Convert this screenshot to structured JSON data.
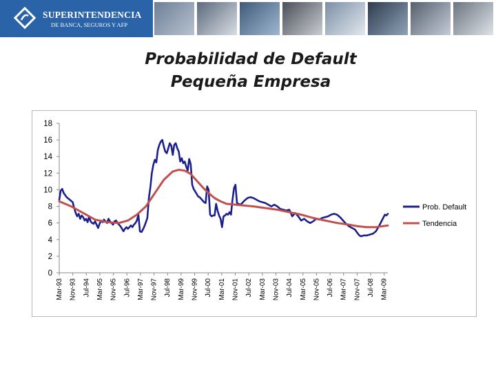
{
  "header": {
    "logo_name": "SUPERINTENDENCIA",
    "logo_sub": "DE BANCA, SEGUROS Y AFP",
    "photos": [
      "credit-cards-photo",
      "office-building-photo",
      "keyboard-enter-photo",
      "tablet-hand-photo",
      "business-handshake-photo",
      "card-terminal-photo",
      "businessmen-photo",
      "signing-document-photo"
    ]
  },
  "slide": {
    "title_line1": "Probabilidad de Default",
    "title_line2": "Pequeña Empresa"
  },
  "colors": {
    "prob_default": "#1b1f8c",
    "tendencia": "#c0504d",
    "banner_blue": "#2a63a8"
  },
  "chart_data": {
    "type": "line",
    "title": "",
    "xlabel": "",
    "ylabel": "",
    "ylim": [
      0,
      18
    ],
    "yticks": [
      "0",
      "2",
      "4",
      "6",
      "8",
      "10",
      "12",
      "14",
      "16",
      "18"
    ],
    "xticks": [
      "Mar-93",
      "Nov-93",
      "Jul-94",
      "Mar-95",
      "Nov-95",
      "Jul-96",
      "Mar-97",
      "Nov-97",
      "Jul-98",
      "Mar-99",
      "Nov-99",
      "Jul-00",
      "Mar-01",
      "Nov-01",
      "Jul-02",
      "Mar-03",
      "Nov-03",
      "Jul-04",
      "Mar-05",
      "Nov-05",
      "Jul-06",
      "Mar-07",
      "Nov-07",
      "Jul-08",
      "Mar-09"
    ],
    "x_start": "Mar-93",
    "x_end": "Sep-09",
    "legend_position": "right",
    "series": [
      {
        "name": "Prob. Default",
        "color": "#1b1f8c",
        "points": [
          [
            0,
            8.8
          ],
          [
            1,
            9.9
          ],
          [
            2,
            10.1
          ],
          [
            3,
            9.6
          ],
          [
            5,
            9.1
          ],
          [
            7,
            8.8
          ],
          [
            9,
            8.5
          ],
          [
            10,
            7.8
          ],
          [
            11,
            7.2
          ],
          [
            12,
            6.8
          ],
          [
            13,
            7.1
          ],
          [
            14,
            6.5
          ],
          [
            15,
            6.9
          ],
          [
            16,
            6.7
          ],
          [
            17,
            6.3
          ],
          [
            18,
            6.5
          ],
          [
            19,
            6.1
          ],
          [
            20,
            6.8
          ],
          [
            21,
            6.2
          ],
          [
            22,
            6.0
          ],
          [
            23,
            5.9
          ],
          [
            24,
            6.2
          ],
          [
            25,
            5.8
          ],
          [
            26,
            5.4
          ],
          [
            27,
            5.9
          ],
          [
            28,
            6.3
          ],
          [
            29,
            6.1
          ],
          [
            30,
            6.4
          ],
          [
            31,
            6.2
          ],
          [
            32,
            6.0
          ],
          [
            33,
            6.5
          ],
          [
            34,
            6.2
          ],
          [
            35,
            6.0
          ],
          [
            36,
            5.8
          ],
          [
            37,
            6.2
          ],
          [
            38,
            6.3
          ],
          [
            39,
            6.0
          ],
          [
            40,
            5.8
          ],
          [
            41,
            5.6
          ],
          [
            42,
            5.3
          ],
          [
            43,
            5.0
          ],
          [
            44,
            5.3
          ],
          [
            45,
            5.5
          ],
          [
            46,
            5.3
          ],
          [
            47,
            5.5
          ],
          [
            48,
            5.7
          ],
          [
            49,
            5.5
          ],
          [
            50,
            5.8
          ],
          [
            51,
            6.0
          ],
          [
            52,
            6.3
          ],
          [
            53,
            7.0
          ],
          [
            54,
            5.0
          ],
          [
            55,
            4.9
          ],
          [
            56,
            5.2
          ],
          [
            57,
            5.6
          ],
          [
            58,
            6.1
          ],
          [
            59,
            6.6
          ],
          [
            60,
            9.0
          ],
          [
            61,
            10.3
          ],
          [
            62,
            12.0
          ],
          [
            63,
            13.0
          ],
          [
            64,
            13.6
          ],
          [
            65,
            13.3
          ],
          [
            66,
            14.8
          ],
          [
            67,
            15.4
          ],
          [
            68,
            15.8
          ],
          [
            69,
            16.0
          ],
          [
            70,
            15.2
          ],
          [
            71,
            14.6
          ],
          [
            72,
            14.4
          ],
          [
            73,
            15.0
          ],
          [
            74,
            15.6
          ],
          [
            75,
            15.3
          ],
          [
            76,
            14.2
          ],
          [
            77,
            15.4
          ],
          [
            78,
            15.6
          ],
          [
            79,
            15.0
          ],
          [
            80,
            14.6
          ],
          [
            81,
            13.4
          ],
          [
            82,
            13.8
          ],
          [
            83,
            13.2
          ],
          [
            84,
            13.4
          ],
          [
            85,
            12.8
          ],
          [
            86,
            12.3
          ],
          [
            87,
            13.7
          ],
          [
            88,
            13.1
          ],
          [
            89,
            10.6
          ],
          [
            90,
            10.1
          ],
          [
            91,
            9.8
          ],
          [
            92,
            9.5
          ],
          [
            93,
            9.2
          ],
          [
            94,
            9.1
          ],
          [
            95,
            8.9
          ],
          [
            96,
            8.7
          ],
          [
            97,
            8.5
          ],
          [
            98,
            8.4
          ],
          [
            99,
            10.4
          ],
          [
            100,
            10.0
          ],
          [
            101,
            7.0
          ],
          [
            102,
            6.8
          ],
          [
            103,
            6.9
          ],
          [
            104,
            6.9
          ],
          [
            105,
            8.3
          ],
          [
            106,
            7.5
          ],
          [
            107,
            6.9
          ],
          [
            108,
            6.5
          ],
          [
            109,
            5.5
          ],
          [
            110,
            6.8
          ],
          [
            111,
            6.9
          ],
          [
            112,
            7.1
          ],
          [
            113,
            7.0
          ],
          [
            114,
            7.3
          ],
          [
            115,
            7.0
          ],
          [
            116,
            8.8
          ],
          [
            117,
            10.2
          ],
          [
            118,
            10.6
          ],
          [
            119,
            8.4
          ],
          [
            120,
            8.3
          ],
          [
            121,
            8.2
          ],
          [
            122,
            8.3
          ],
          [
            123,
            8.5
          ],
          [
            124,
            8.7
          ],
          [
            126,
            9.0
          ],
          [
            128,
            9.1
          ],
          [
            130,
            9.0
          ],
          [
            132,
            8.8
          ],
          [
            134,
            8.6
          ],
          [
            136,
            8.5
          ],
          [
            138,
            8.4
          ],
          [
            140,
            8.2
          ],
          [
            142,
            8.0
          ],
          [
            144,
            8.2
          ],
          [
            146,
            8.0
          ],
          [
            148,
            7.7
          ],
          [
            150,
            7.6
          ],
          [
            152,
            7.5
          ],
          [
            154,
            7.6
          ],
          [
            156,
            6.8
          ],
          [
            158,
            7.2
          ],
          [
            160,
            6.8
          ],
          [
            162,
            6.3
          ],
          [
            164,
            6.5
          ],
          [
            166,
            6.2
          ],
          [
            168,
            6.0
          ],
          [
            170,
            6.2
          ],
          [
            172,
            6.5
          ],
          [
            174,
            6.4
          ],
          [
            176,
            6.6
          ],
          [
            178,
            6.7
          ],
          [
            180,
            6.8
          ],
          [
            182,
            7.0
          ],
          [
            184,
            7.1
          ],
          [
            186,
            7.0
          ],
          [
            188,
            6.7
          ],
          [
            190,
            6.3
          ],
          [
            192,
            5.9
          ],
          [
            194,
            5.6
          ],
          [
            196,
            5.4
          ],
          [
            198,
            5.2
          ],
          [
            200,
            4.7
          ],
          [
            201,
            4.5
          ],
          [
            202,
            4.4
          ],
          [
            204,
            4.5
          ],
          [
            206,
            4.5
          ],
          [
            208,
            4.6
          ],
          [
            210,
            4.7
          ],
          [
            212,
            5.0
          ],
          [
            214,
            5.6
          ],
          [
            216,
            6.3
          ],
          [
            218,
            7.0
          ],
          [
            219,
            6.9
          ],
          [
            220,
            7.1
          ]
        ]
      },
      {
        "name": "Tendencia",
        "color": "#c0504d",
        "points": [
          [
            0,
            8.6
          ],
          [
            8,
            8.0
          ],
          [
            16,
            7.2
          ],
          [
            24,
            6.4
          ],
          [
            32,
            6.1
          ],
          [
            40,
            6.0
          ],
          [
            46,
            6.3
          ],
          [
            52,
            7.0
          ],
          [
            58,
            8.0
          ],
          [
            64,
            9.6
          ],
          [
            70,
            11.2
          ],
          [
            76,
            12.2
          ],
          [
            80,
            12.4
          ],
          [
            84,
            12.3
          ],
          [
            88,
            11.9
          ],
          [
            92,
            11.1
          ],
          [
            96,
            10.3
          ],
          [
            100,
            9.6
          ],
          [
            104,
            9.0
          ],
          [
            108,
            8.6
          ],
          [
            112,
            8.3
          ],
          [
            118,
            8.2
          ],
          [
            124,
            8.1
          ],
          [
            130,
            8.0
          ],
          [
            138,
            7.8
          ],
          [
            146,
            7.6
          ],
          [
            154,
            7.3
          ],
          [
            162,
            7.0
          ],
          [
            170,
            6.6
          ],
          [
            178,
            6.3
          ],
          [
            186,
            6.0
          ],
          [
            194,
            5.8
          ],
          [
            200,
            5.6
          ],
          [
            206,
            5.5
          ],
          [
            212,
            5.5
          ],
          [
            216,
            5.6
          ],
          [
            220,
            5.7
          ]
        ]
      }
    ]
  }
}
